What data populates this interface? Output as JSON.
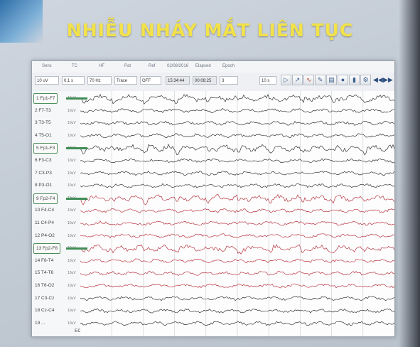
{
  "slide": {
    "title": "NHIỄU NHÁY MẮT LIÊN TỤC"
  },
  "toolbar": {
    "labels": {
      "sens": "Sens",
      "tc": "TC",
      "hf": "HF",
      "pat": "Pat",
      "ref": "Ref",
      "date": "02/08/2016",
      "elapsed": "Elapsed",
      "epoch": "Epoch"
    },
    "sens_value": "10 uV",
    "tc_value": "0.1 s",
    "hf_value": "70 Hz",
    "pat_value": "Trace",
    "ref_value": "OFF",
    "clock_value": "15:34:44",
    "elapsed_value": "00:08:25",
    "epoch_value": "3",
    "page_speed_value": "10 s",
    "icons": [
      "play-icon",
      "cursor-icon",
      "measure-icon",
      "marker-icon",
      "print-icon",
      "patient-icon",
      "chart-icon",
      "settings-icon"
    ],
    "nav_back": "◀◀",
    "nav_fwd": "▶▶"
  },
  "channels": [
    {
      "label": "1 Fp1-F7",
      "gain": "10uV",
      "highlight": true,
      "color": "#333333"
    },
    {
      "label": "2 F7-T3",
      "gain": "10uV",
      "highlight": false,
      "color": "#333333"
    },
    {
      "label": "3 T3-T5",
      "gain": "10uV",
      "highlight": false,
      "color": "#333333"
    },
    {
      "label": "4 T5-O1",
      "gain": "10uV",
      "highlight": false,
      "color": "#333333"
    },
    {
      "label": "5 Fp1-F3",
      "gain": "10uV",
      "highlight": true,
      "color": "#333333"
    },
    {
      "label": "6 F3-C3",
      "gain": "10uV",
      "highlight": false,
      "color": "#333333"
    },
    {
      "label": "7 C3-P3",
      "gain": "10uV",
      "highlight": false,
      "color": "#333333"
    },
    {
      "label": "8 P3-O1",
      "gain": "10uV",
      "highlight": false,
      "color": "#333333"
    },
    {
      "label": "9 Fp2-F4",
      "gain": "10uV",
      "highlight": true,
      "color": "#b8343f"
    },
    {
      "label": "10 F4-C4",
      "gain": "10uV",
      "highlight": false,
      "color": "#b8343f"
    },
    {
      "label": "11 C4-P4",
      "gain": "10uV",
      "highlight": false,
      "color": "#b8343f"
    },
    {
      "label": "12 P4-O2",
      "gain": "10uV",
      "highlight": false,
      "color": "#b8343f"
    },
    {
      "label": "13 Fp2-F8",
      "gain": "10uV",
      "highlight": true,
      "color": "#b8343f"
    },
    {
      "label": "14 F8-T4",
      "gain": "10uV",
      "highlight": false,
      "color": "#b8343f"
    },
    {
      "label": "15 T4-T6",
      "gain": "10uV",
      "highlight": false,
      "color": "#b8343f"
    },
    {
      "label": "16 T6-O2",
      "gain": "10uV",
      "highlight": false,
      "color": "#b8343f"
    },
    {
      "label": "17 C3-Cz",
      "gain": "10uV",
      "highlight": false,
      "color": "#333333"
    },
    {
      "label": "18 Cz-C4",
      "gain": "10uV",
      "highlight": false,
      "color": "#333333"
    },
    {
      "label": "19 ... ",
      "gain": "10uV",
      "highlight": false,
      "color": "#333333"
    }
  ],
  "ecg_label": "ECG",
  "colors": {
    "left_trace": "#333333",
    "right_trace": "#b8343f",
    "highlight": "#3f8d55",
    "grid": "#c8ccd2"
  }
}
